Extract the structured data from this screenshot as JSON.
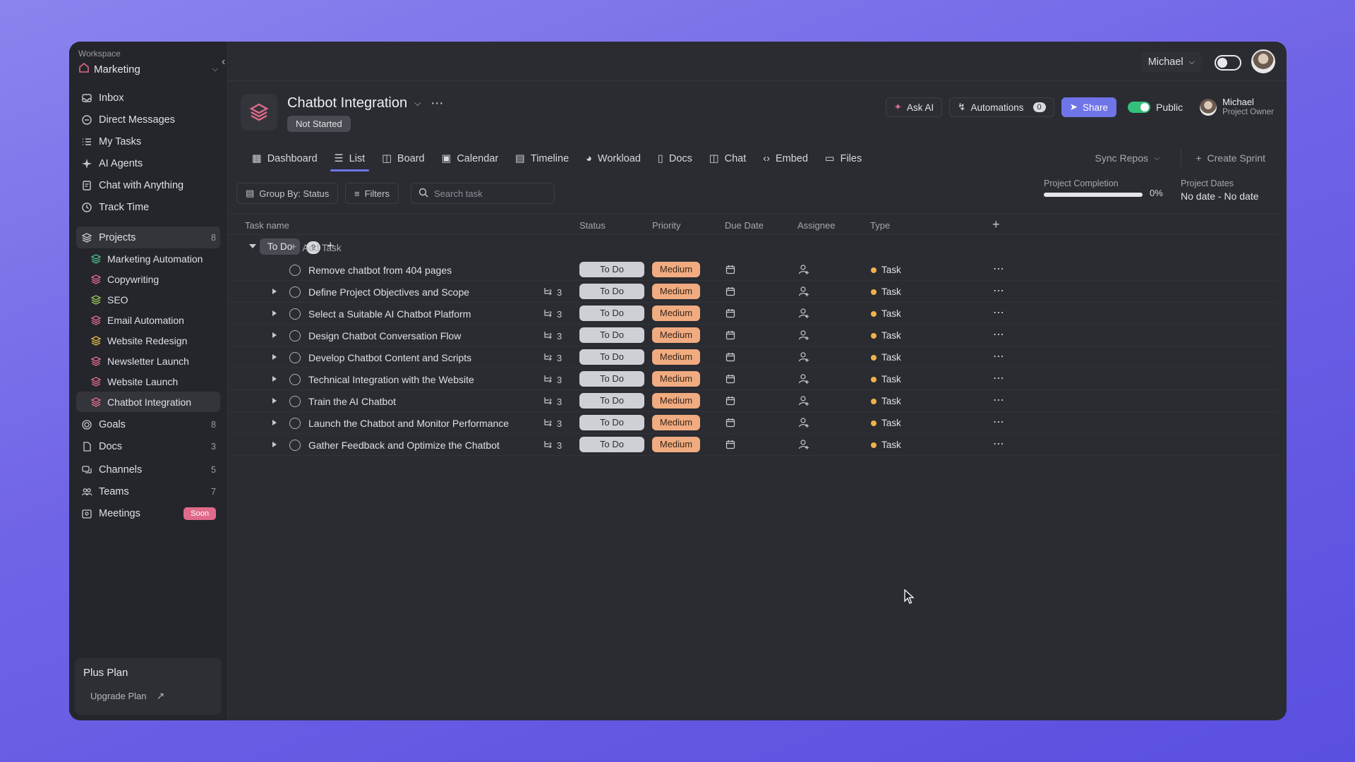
{
  "sidebar": {
    "workspace_caption": "Workspace",
    "workspace_name": "Marketing",
    "nav": [
      {
        "label": "Inbox",
        "icon": "inbox-icon"
      },
      {
        "label": "Direct Messages",
        "icon": "message-icon"
      },
      {
        "label": "My Tasks",
        "icon": "tasks-icon"
      },
      {
        "label": "AI Agents",
        "icon": "sparkle-icon"
      },
      {
        "label": "Chat with Anything",
        "icon": "document-chat-icon"
      },
      {
        "label": "Track Time",
        "icon": "clock-icon"
      }
    ],
    "projects_label": "Projects",
    "projects_count": "8",
    "projects": [
      {
        "label": "Marketing Automation",
        "color": "#4fb58a"
      },
      {
        "label": "Copywriting",
        "color": "#e06a8a"
      },
      {
        "label": "SEO",
        "color": "#9bc45a"
      },
      {
        "label": "Email Automation",
        "color": "#e06a8a"
      },
      {
        "label": "Website Redesign",
        "color": "#e2b64a"
      },
      {
        "label": "Newsletter Launch",
        "color": "#e06a8a"
      },
      {
        "label": "Website Launch",
        "color": "#e06a8a"
      },
      {
        "label": "Chatbot Integration",
        "color": "#e06a8a"
      }
    ],
    "groups": [
      {
        "label": "Goals",
        "count": "8",
        "icon": "target-icon"
      },
      {
        "label": "Docs",
        "count": "3",
        "icon": "doc-icon"
      },
      {
        "label": "Channels",
        "count": "5",
        "icon": "channels-icon"
      },
      {
        "label": "Teams",
        "count": "7",
        "icon": "teams-icon"
      },
      {
        "label": "Meetings",
        "badge": "Soon",
        "icon": "meetings-icon"
      }
    ],
    "plan_title": "Plus Plan",
    "plan_link": "Upgrade Plan"
  },
  "topbar": {
    "user_name": "Michael"
  },
  "project": {
    "title": "Chatbot Integration",
    "status": "Not Started",
    "ask_ai": "Ask AI",
    "automations_label": "Automations",
    "automations_count": "0",
    "share_label": "Share",
    "public_label": "Public",
    "owner_name": "Michael",
    "owner_role": "Project Owner"
  },
  "tabs": [
    "Dashboard",
    "List",
    "Board",
    "Calendar",
    "Timeline",
    "Workload",
    "Docs",
    "Chat",
    "Embed",
    "Files"
  ],
  "tab_right": {
    "sync": "Sync Repos",
    "sprint": "Create Sprint"
  },
  "toolbar": {
    "group_by": "Group By: Status",
    "filters": "Filters",
    "search_placeholder": "Search task",
    "completion_label": "Project Completion",
    "completion_value": "0%",
    "completion_fraction": 0,
    "dates_label": "Project Dates",
    "dates_value": "No date - No date"
  },
  "table": {
    "columns": [
      "Task name",
      "Status",
      "Priority",
      "Due Date",
      "Assignee",
      "Type"
    ],
    "group_label": "To Do",
    "group_count": "9",
    "add_task": "Add Task",
    "rows": [
      {
        "name": "Remove chatbot from 404 pages",
        "subtasks": "",
        "status": "To Do",
        "priority": "Medium",
        "type": "Task",
        "expandable": false
      },
      {
        "name": "Define Project Objectives and Scope",
        "subtasks": "3",
        "status": "To Do",
        "priority": "Medium",
        "type": "Task",
        "expandable": true
      },
      {
        "name": "Select a Suitable AI Chatbot Platform",
        "subtasks": "3",
        "status": "To Do",
        "priority": "Medium",
        "type": "Task",
        "expandable": true
      },
      {
        "name": "Design Chatbot Conversation Flow",
        "subtasks": "3",
        "status": "To Do",
        "priority": "Medium",
        "type": "Task",
        "expandable": true
      },
      {
        "name": "Develop Chatbot Content and Scripts",
        "subtasks": "3",
        "status": "To Do",
        "priority": "Medium",
        "type": "Task",
        "expandable": true
      },
      {
        "name": "Technical Integration with the Website",
        "subtasks": "3",
        "status": "To Do",
        "priority": "Medium",
        "type": "Task",
        "expandable": true
      },
      {
        "name": "Train the AI Chatbot",
        "subtasks": "3",
        "status": "To Do",
        "priority": "Medium",
        "type": "Task",
        "expandable": true
      },
      {
        "name": "Launch the Chatbot and Monitor Performance",
        "subtasks": "3",
        "status": "To Do",
        "priority": "Medium",
        "type": "Task",
        "expandable": true
      },
      {
        "name": "Gather Feedback and Optimize the Chatbot",
        "subtasks": "3",
        "status": "To Do",
        "priority": "Medium",
        "type": "Task",
        "expandable": true
      }
    ]
  }
}
